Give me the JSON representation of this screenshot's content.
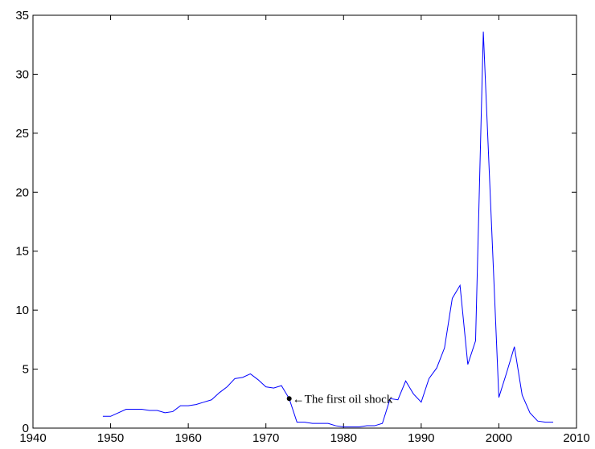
{
  "chart_data": {
    "type": "line",
    "x": [
      1949,
      1950,
      1952,
      1953,
      1954,
      1955,
      1956,
      1957,
      1958,
      1959,
      1960,
      1961,
      1962,
      1963,
      1964,
      1965,
      1966,
      1967,
      1968,
      1969,
      1970,
      1971,
      1972,
      1973,
      1974,
      1975,
      1976,
      1977,
      1978,
      1979,
      1980,
      1981,
      1982,
      1983,
      1984,
      1985,
      1986,
      1987,
      1988,
      1989,
      1990,
      1991,
      1992,
      1993,
      1994,
      1995,
      1996,
      1997,
      1998,
      2000,
      2001,
      2002,
      2003,
      2004,
      2005,
      2006,
      2007
    ],
    "values": [
      1.0,
      1.0,
      1.6,
      1.6,
      1.6,
      1.5,
      1.5,
      1.3,
      1.4,
      1.9,
      1.9,
      2.0,
      2.2,
      2.4,
      3.0,
      3.5,
      4.2,
      4.3,
      4.6,
      4.1,
      3.5,
      3.4,
      3.6,
      2.5,
      0.5,
      0.5,
      0.4,
      0.4,
      0.4,
      0.2,
      0.1,
      0.1,
      0.1,
      0.2,
      0.2,
      0.4,
      2.5,
      2.4,
      4.0,
      2.9,
      2.2,
      4.2,
      5.1,
      6.8,
      11.0,
      12.1,
      5.4,
      7.4,
      33.6,
      2.6,
      4.7,
      6.9,
      2.8,
      1.3,
      0.6,
      0.5,
      0.5
    ],
    "color": "#0000ff",
    "xlim": [
      1940,
      2010
    ],
    "xticks": [
      1940,
      1950,
      1960,
      1970,
      1980,
      1990,
      2000,
      2010
    ],
    "ylim": [
      0,
      35
    ],
    "yticks": [
      0,
      5,
      10,
      15,
      20,
      25,
      30,
      35
    ],
    "grid": false,
    "annotation": {
      "text": "←The first oil shock",
      "x": 1973,
      "y": 2.5
    }
  }
}
